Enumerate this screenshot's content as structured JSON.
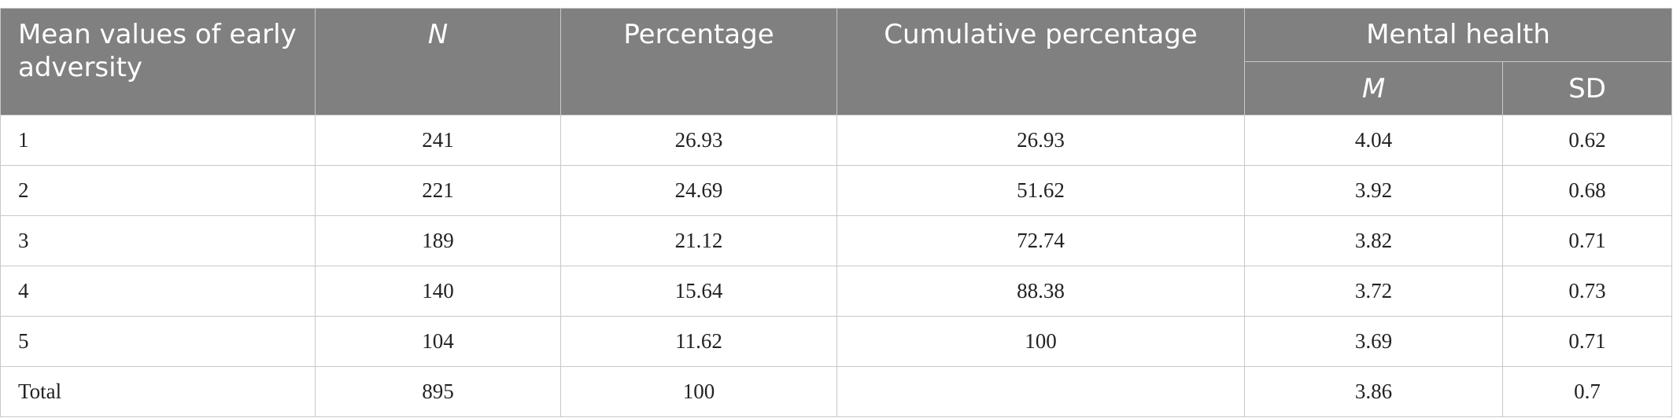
{
  "table": {
    "header": {
      "first": "Mean values of early adversity",
      "n": "N",
      "percentage": "Percentage",
      "cumulative": "Cumulative percentage",
      "group": "Mental health",
      "m": "M",
      "sd": "SD"
    },
    "rows": [
      [
        "1",
        "241",
        "26.93",
        "26.93",
        "4.04",
        "0.62"
      ],
      [
        "2",
        "221",
        "24.69",
        "51.62",
        "3.92",
        "0.68"
      ],
      [
        "3",
        "189",
        "21.12",
        "72.74",
        "3.82",
        "0.71"
      ],
      [
        "4",
        "140",
        "15.64",
        "88.38",
        "3.72",
        "0.73"
      ],
      [
        "5",
        "104",
        "11.62",
        "100",
        "3.69",
        "0.71"
      ],
      [
        "Total",
        "895",
        "100",
        null,
        "3.86",
        "0.7"
      ]
    ]
  }
}
